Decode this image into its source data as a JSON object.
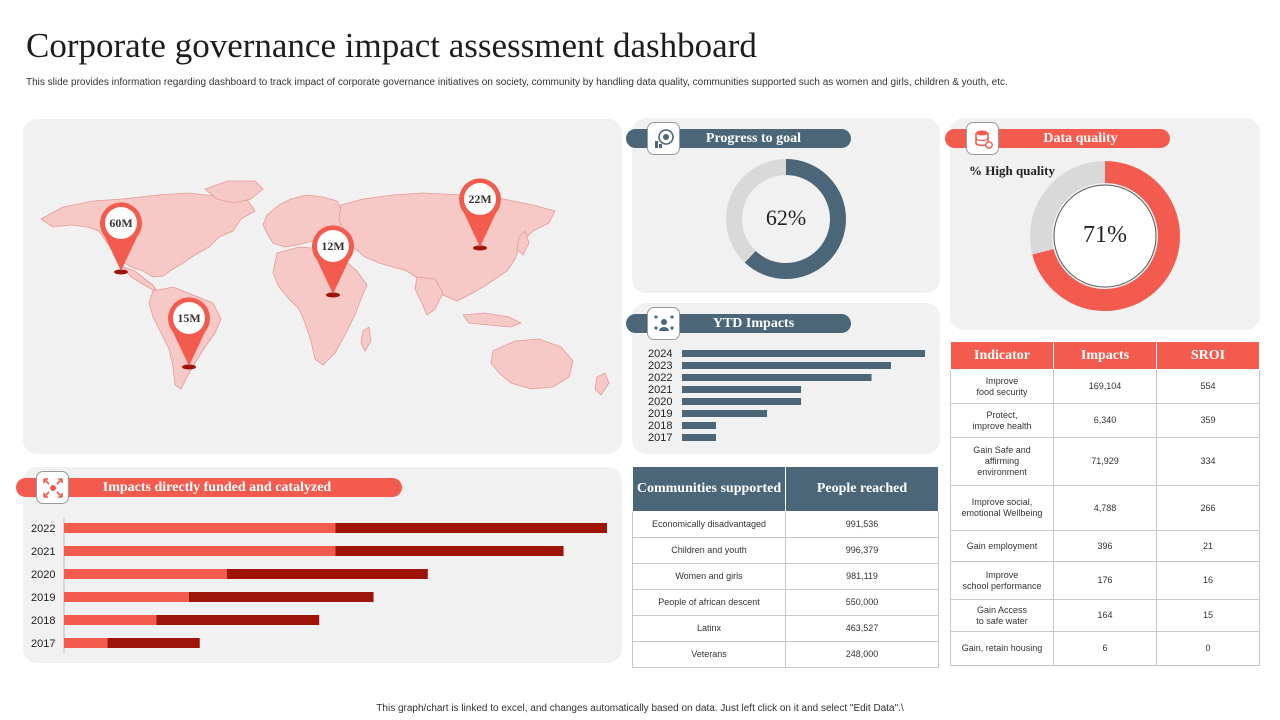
{
  "header": {
    "title": "Corporate governance impact assessment dashboard",
    "subtitle": "This slide provides information regarding dashboard to track impact of corporate governance initiatives on society, community by handling data quality, communities supported such as women and girls, children & youth, etc."
  },
  "footer": "This graph/chart is linked to excel, and changes automatically based on data. Just left click on it and select \"Edit Data\".\\",
  "map": {
    "pins": [
      {
        "label": "60M",
        "region": "North America"
      },
      {
        "label": "22M",
        "region": "Asia"
      },
      {
        "label": "12M",
        "region": "Africa"
      },
      {
        "label": "15M",
        "region": "South America"
      }
    ],
    "colors": {
      "land": "#f6c9c6",
      "land_stroke": "#e59a95",
      "pin": "#f25b4e"
    }
  },
  "progress": {
    "title": "Progress to goal",
    "value_label": "62%",
    "value": 62,
    "colors": {
      "fill": "#4a6678",
      "track": "#d9d9d9"
    }
  },
  "quality": {
    "title": "Data quality",
    "caption": "% High quality",
    "value_label": "71%",
    "value": 71,
    "colors": {
      "fill": "#f25b4e",
      "track": "#d9d9d9"
    }
  },
  "ytd": {
    "title": "YTD Impacts"
  },
  "impacts": {
    "title": "Impacts directly funded and catalyzed"
  },
  "chart_data": [
    {
      "type": "bar",
      "orientation": "horizontal",
      "title": "YTD Impacts",
      "categories": [
        "2024",
        "2023",
        "2022",
        "2021",
        "2020",
        "2019",
        "2018",
        "2017"
      ],
      "values": [
        100,
        86,
        78,
        49,
        49,
        35,
        14,
        14
      ],
      "xlim": [
        0,
        100
      ],
      "color": "#4a6678",
      "grid": false
    },
    {
      "type": "bar",
      "orientation": "horizontal",
      "stacked": true,
      "title": "Impacts directly funded and catalyzed",
      "categories": [
        "2022",
        "2021",
        "2020",
        "2019",
        "2018",
        "2017"
      ],
      "series": [
        {
          "values": [
            50,
            50,
            30,
            23,
            17,
            8
          ],
          "color": "#f25b4e"
        },
        {
          "values": [
            50,
            42,
            37,
            34,
            30,
            17
          ],
          "color": "#9e1409"
        }
      ],
      "xlim": [
        0,
        100
      ],
      "grid": false
    },
    {
      "type": "pie",
      "title": "Progress to goal",
      "values": [
        62,
        38
      ],
      "colors": [
        "#4a6678",
        "#d9d9d9"
      ]
    },
    {
      "type": "pie",
      "title": "Data quality",
      "values": [
        71,
        29
      ],
      "colors": [
        "#f25b4e",
        "#d9d9d9"
      ]
    }
  ],
  "communities": {
    "headers": [
      "Communities supported",
      "People reached"
    ],
    "rows": [
      [
        "Economically disadvantaged",
        "991,536"
      ],
      [
        "Children and youth",
        "996,379"
      ],
      [
        "Women and girls",
        "981,119"
      ],
      [
        "People of african descent",
        "550,000"
      ],
      [
        "Latinx",
        "463,527"
      ],
      [
        "Veterans",
        "248,000"
      ]
    ]
  },
  "indicators": {
    "headers": [
      "Indicator",
      "Impacts",
      "SROI"
    ],
    "rows": [
      {
        "lines": [
          "Improve",
          "food security"
        ],
        "impacts": "169,104",
        "sroi": "554",
        "h": 34
      },
      {
        "lines": [
          "Protect,",
          "improve health"
        ],
        "impacts": "6,340",
        "sroi": "359",
        "h": 34
      },
      {
        "lines": [
          "Gain Safe and",
          "affirming",
          "environment"
        ],
        "impacts": "71,929",
        "sroi": "334",
        "h": 48
      },
      {
        "lines": [
          "Improve social,",
          "emotional Wellbeing"
        ],
        "impacts": "4,788",
        "sroi": "266",
        "h": 45
      },
      {
        "lines": [
          "Gain employment"
        ],
        "impacts": "396",
        "sroi": "21",
        "h": 31
      },
      {
        "lines": [
          "Improve",
          "school performance"
        ],
        "impacts": "176",
        "sroi": "16",
        "h": 38
      },
      {
        "lines": [
          "Gain Access",
          "to safe water"
        ],
        "impacts": "164",
        "sroi": "15",
        "h": 32
      },
      {
        "lines": [
          "Gain, retain housing"
        ],
        "impacts": "6",
        "sroi": "0",
        "h": 34
      }
    ]
  }
}
